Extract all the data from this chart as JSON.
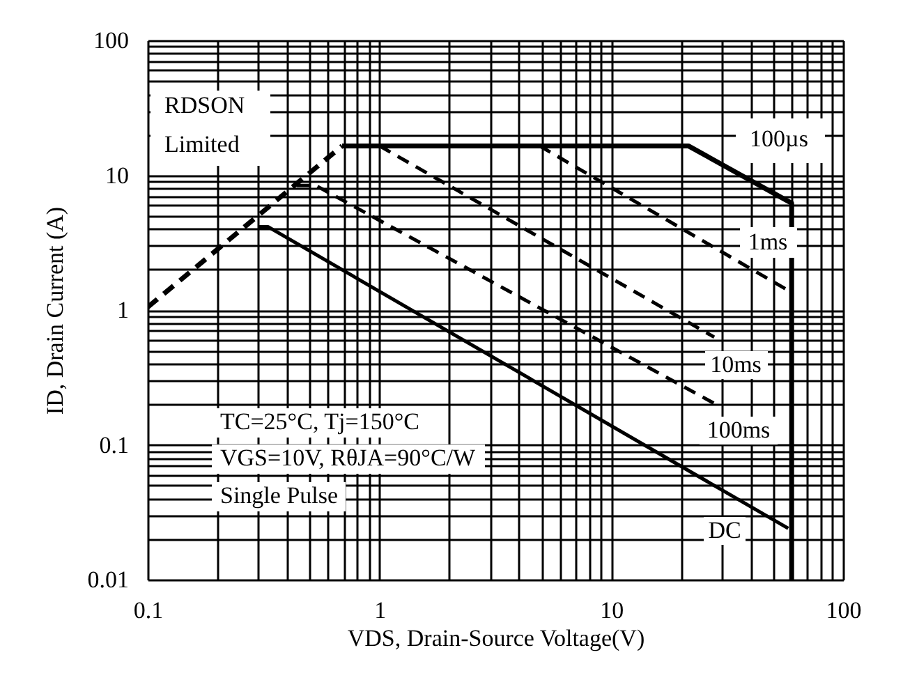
{
  "chart_data": {
    "type": "line",
    "xlabel": "VDS, Drain-Source Voltage(V)",
    "ylabel": "ID, Drain Current (A)",
    "log": "xy",
    "grid": true,
    "marker": "none",
    "xlim": [
      0.1,
      100
    ],
    "ylim": [
      0.01,
      100
    ],
    "xticks": [
      0.1,
      {
        "value": 0.2,
        "label": null
      },
      {
        "value": 0.3,
        "label": null
      },
      {
        "value": 0.4,
        "label": null
      },
      {
        "value": 0.5,
        "label": null
      },
      {
        "value": 0.6,
        "label": null
      },
      {
        "value": 0.7,
        "label": null
      },
      {
        "value": 0.8,
        "label": null
      },
      {
        "value": 0.9,
        "label": null
      },
      1,
      {
        "value": 2,
        "label": null
      },
      {
        "value": 3,
        "label": null
      },
      {
        "value": 4,
        "label": null
      },
      {
        "value": 5,
        "label": null
      },
      {
        "value": 6,
        "label": null
      },
      {
        "value": 7,
        "label": null
      },
      {
        "value": 8,
        "label": null
      },
      {
        "value": 9,
        "label": null
      },
      10,
      {
        "value": 20,
        "label": null
      },
      {
        "value": 30,
        "label": null
      },
      {
        "value": 40,
        "label": null
      },
      {
        "value": 50,
        "label": null
      },
      {
        "value": 60,
        "label": null
      },
      {
        "value": 70,
        "label": null
      },
      {
        "value": 80,
        "label": null
      },
      {
        "value": 90,
        "label": null
      },
      100
    ],
    "yticks": [
      0.01,
      {
        "value": 0.02,
        "label": null
      },
      {
        "value": 0.03,
        "label": null
      },
      {
        "value": 0.04,
        "label": null
      },
      {
        "value": 0.05,
        "label": null
      },
      {
        "value": 0.06,
        "label": null
      },
      {
        "value": 0.07,
        "label": null
      },
      {
        "value": 0.08,
        "label": null
      },
      {
        "value": 0.09,
        "label": null
      },
      0.1,
      {
        "value": 0.2,
        "label": null
      },
      {
        "value": 0.3,
        "label": null
      },
      {
        "value": 0.4,
        "label": null
      },
      {
        "value": 0.5,
        "label": null
      },
      {
        "value": 0.6,
        "label": null
      },
      {
        "value": 0.7,
        "label": null
      },
      {
        "value": 0.8,
        "label": null
      },
      {
        "value": 0.9,
        "label": null
      },
      1,
      {
        "value": 2,
        "label": null
      },
      {
        "value": 3,
        "label": null
      },
      {
        "value": 4,
        "label": null
      },
      {
        "value": 5,
        "label": null
      },
      {
        "value": 6,
        "label": null
      },
      {
        "value": 7,
        "label": null
      },
      {
        "value": 8,
        "label": null
      },
      {
        "value": 9,
        "label": null
      },
      10,
      {
        "value": 20,
        "label": null
      },
      {
        "value": 30,
        "label": null
      },
      {
        "value": 40,
        "label": null
      },
      {
        "value": 50,
        "label": null
      },
      {
        "value": 60,
        "label": null
      },
      {
        "value": 70,
        "label": null
      },
      {
        "value": 80,
        "label": null
      },
      {
        "value": 90,
        "label": null
      },
      100
    ],
    "series": [
      {
        "color": "#000000",
        "line_style": "dashed",
        "x": [
          0.1,
          0.69
        ],
        "values": [
          1.05,
          16.5
        ]
      },
      {
        "color": "#000000",
        "line_style": "solid",
        "x": [
          0.69,
          21.5,
          60,
          60
        ],
        "values": [
          16.5,
          16.5,
          6.2,
          0.01
        ]
      },
      {
        "color": "#000000",
        "line_style": "dashed",
        "x": [
          4.9,
          60
        ],
        "values": [
          16.5,
          1.35
        ]
      },
      {
        "color": "#000000",
        "line_style": "dashed",
        "x": [
          1.0,
          27.8
        ],
        "values": [
          16.5,
          0.63
        ]
      },
      {
        "color": "#000000",
        "line_style": "dashed",
        "x": [
          0.44,
          0.53,
          28.7
        ],
        "values": [
          8.4,
          8.4,
          0.197
        ]
      },
      {
        "color": "#000000",
        "line_style": "solid",
        "x": [
          0.3,
          0.33,
          58
        ],
        "values": [
          4.15,
          4.15,
          0.024
        ]
      }
    ],
    "annotations": [
      "RDSON",
      "Limited",
      "100µs",
      "1ms",
      "10ms",
      "100ms",
      "DC",
      "TC=25°C, Tj=150°C",
      "VGS=10V, RθJA=90°C/W",
      "Single Pulse"
    ]
  }
}
